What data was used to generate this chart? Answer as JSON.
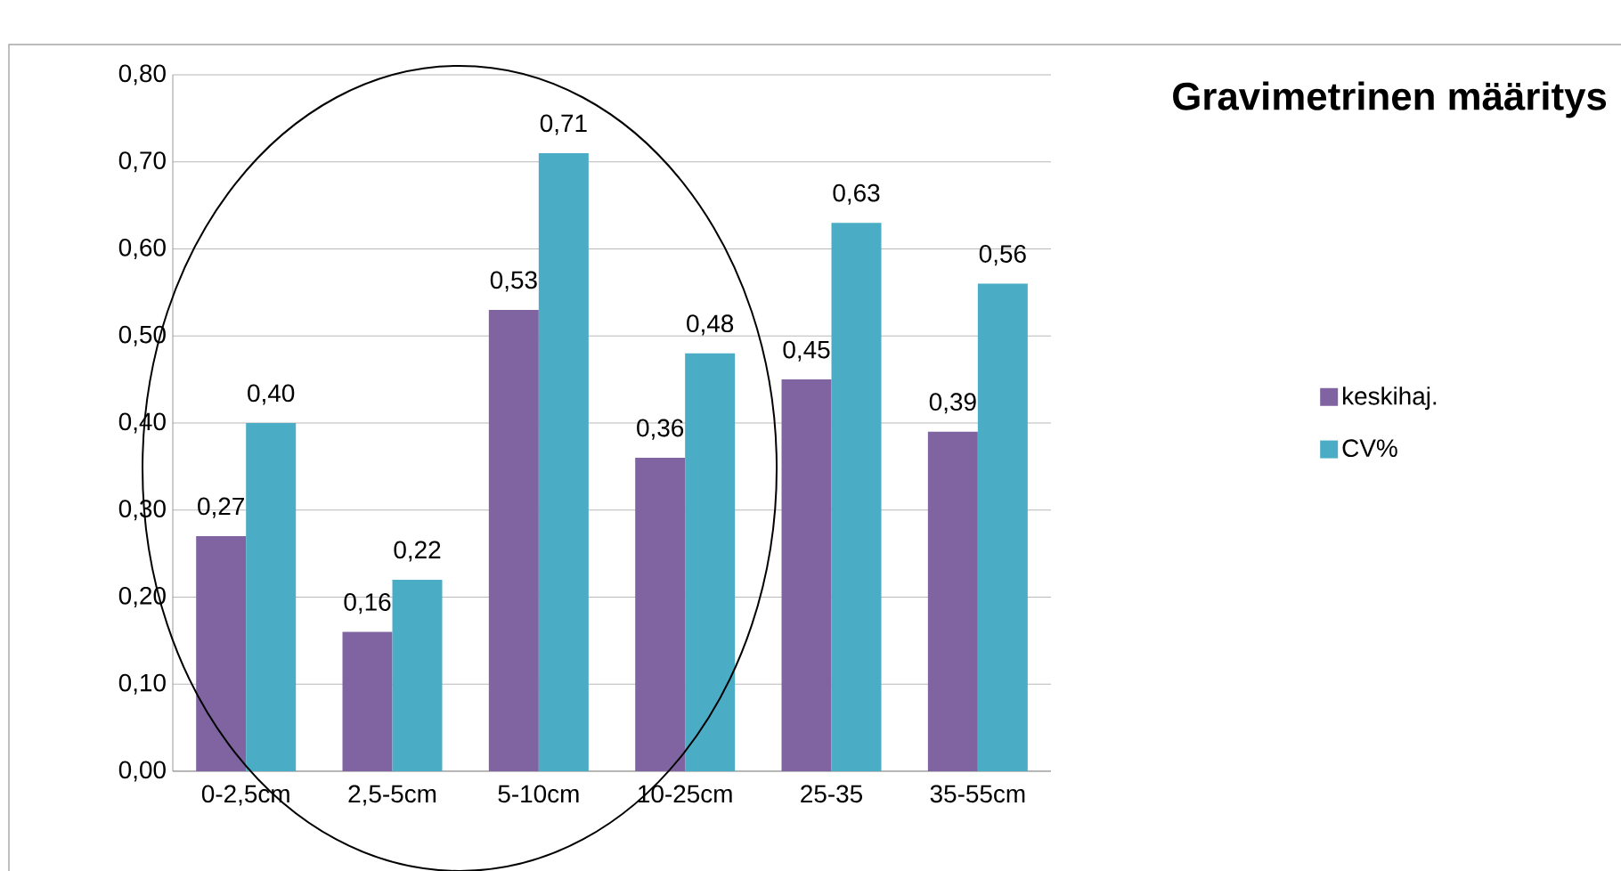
{
  "chart_data": {
    "type": "bar",
    "title": "Gravimetrinen määritys",
    "categories": [
      "0-2,5cm",
      "2,5-5cm",
      "5-10cm",
      "10-25cm",
      "25-35",
      "35-55cm"
    ],
    "series": [
      {
        "name": "keskihaj.",
        "color": "#8064a2",
        "values": [
          0.27,
          0.16,
          0.53,
          0.36,
          0.45,
          0.39
        ],
        "value_labels": [
          "0,27",
          "0,16",
          "0,53",
          "0,36",
          "0,45",
          "0,39"
        ]
      },
      {
        "name": "CV%",
        "color": "#4bacc6",
        "values": [
          0.4,
          0.22,
          0.71,
          0.48,
          0.63,
          0.56
        ],
        "value_labels": [
          "0,40",
          "0,22",
          "0,71",
          "0,48",
          "0,63",
          "0,56"
        ]
      }
    ],
    "ylim": [
      0,
      0.8
    ],
    "yticks": [
      {
        "value": 0,
        "label": "0,00"
      },
      {
        "value": 0.1,
        "label": "0,10"
      },
      {
        "value": 0.2,
        "label": "0,20"
      },
      {
        "value": 0.3,
        "label": "0,30"
      },
      {
        "value": 0.4,
        "label": "0,40"
      },
      {
        "value": 0.5,
        "label": "0,50"
      },
      {
        "value": 0.6,
        "label": "0,60"
      },
      {
        "value": 0.7,
        "label": "0,70"
      },
      {
        "value": 0.8,
        "label": "0,80"
      }
    ],
    "grid": "y",
    "legend": "right"
  }
}
